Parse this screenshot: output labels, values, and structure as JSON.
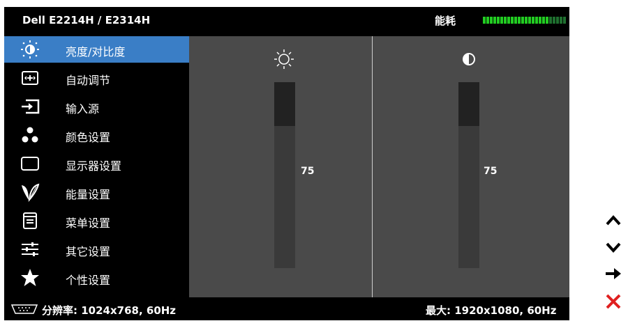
{
  "title": "Dell E2214H / E2314H",
  "energy": {
    "label": "能耗",
    "level": 0.78,
    "on_color": "#22cc22",
    "off_color": "#1f6f2f"
  },
  "menu": {
    "selected_index": 0,
    "items": [
      {
        "label": "亮度/对比度",
        "icon": "brightness-contrast-icon"
      },
      {
        "label": "自动调节",
        "icon": "auto-adjust-icon"
      },
      {
        "label": "输入源",
        "icon": "input-source-icon"
      },
      {
        "label": "颜色设置",
        "icon": "color-settings-icon"
      },
      {
        "label": "显示器设置",
        "icon": "display-settings-icon"
      },
      {
        "label": "能量设置",
        "icon": "energy-settings-icon"
      },
      {
        "label": "菜单设置",
        "icon": "menu-settings-icon"
      },
      {
        "label": "其它设置",
        "icon": "other-settings-icon"
      },
      {
        "label": "个性设置",
        "icon": "personalize-icon"
      }
    ]
  },
  "brightness": {
    "value": "75",
    "level": 0.75,
    "icon": "sun-icon"
  },
  "contrast": {
    "value": "75",
    "level": 0.75,
    "icon": "contrast-icon"
  },
  "status": {
    "resolution": "分辨率: 1024x768,  60Hz",
    "max": "最大: 1920x1080,  60Hz"
  },
  "buttons": [
    {
      "icon": "up-arrow-icon"
    },
    {
      "icon": "down-arrow-icon"
    },
    {
      "icon": "right-arrow-icon"
    },
    {
      "icon": "close-icon"
    }
  ],
  "colors": {
    "accent": "#3a7ec6",
    "panel": "#4a4a4a",
    "close": "#e02020"
  }
}
